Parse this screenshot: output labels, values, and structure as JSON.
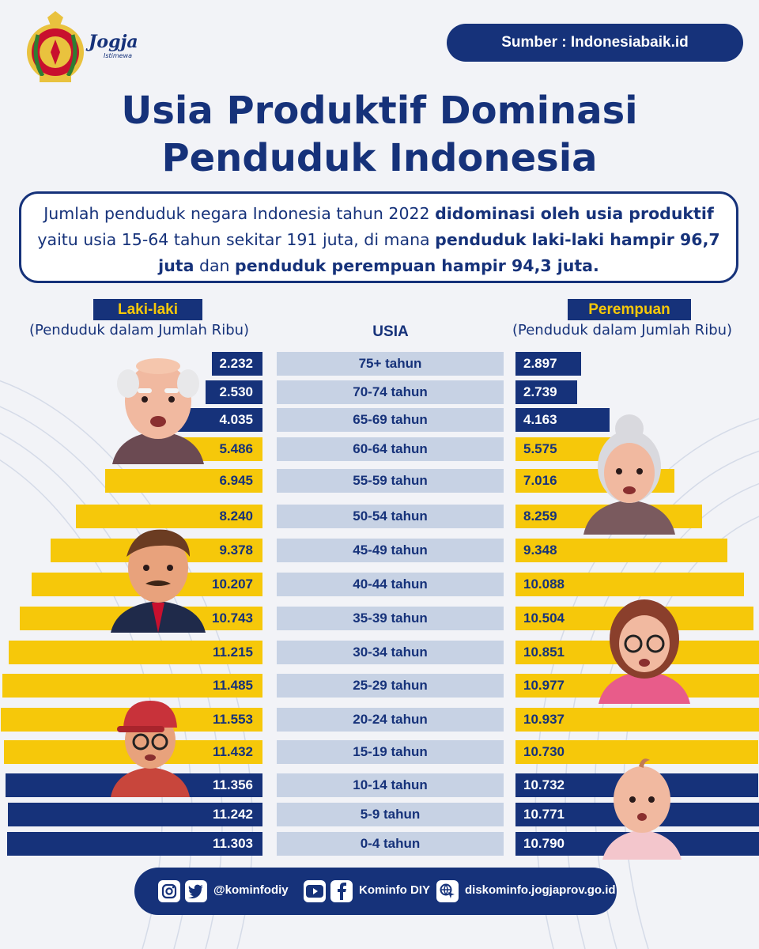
{
  "header": {
    "logo_text": "Jogja",
    "logo_sub": "Istimewa",
    "source": "Sumber : Indonesiabaik.id"
  },
  "title_line1": "Usia Produktif Dominasi",
  "title_line2": "Penduduk Indonesia",
  "summary": {
    "p1": "Jumlah penduduk negara Indonesia tahun 2022 ",
    "b1": "didominasi oleh usia produktif",
    "p2": " yaitu usia 15-64 tahun sekitar 191 juta, di mana ",
    "b2": "penduduk laki-laki hampir 96,7 juta",
    "p3": " dan ",
    "b3": "penduduk perempuan hampir 94,3 juta."
  },
  "labels": {
    "male": "Laki-laki",
    "male_sub": "(Penduduk dalam Jumlah Ribu)",
    "female": "Perempuan",
    "female_sub": "(Penduduk dalam Jumlah Ribu)",
    "age": "USIA"
  },
  "chart_data": {
    "type": "bar",
    "categories": [
      "75+ tahun",
      "70-74 tahun",
      "65-69 tahun",
      "60-64 tahun",
      "55-59 tahun",
      "50-54 tahun",
      "45-49 tahun",
      "40-44 tahun",
      "35-39 tahun",
      "30-34 tahun",
      "25-29 tahun",
      "20-24 tahun",
      "15-19 tahun",
      "10-14 tahun",
      "5-9 tahun",
      "0-4 tahun"
    ],
    "series": [
      {
        "name": "Laki-laki",
        "values": [
          2232,
          2530,
          4035,
          5486,
          6945,
          8240,
          9378,
          10207,
          10743,
          11215,
          11485,
          11553,
          11432,
          11356,
          11242,
          11303
        ],
        "labels": [
          "2.232",
          "2.530",
          "4.035",
          "5.486",
          "6.945",
          "8.240",
          "9.378",
          "10.207",
          "10.743",
          "11.215",
          "11.485",
          "11.553",
          "11.432",
          "11.356",
          "11.242",
          "11.303"
        ]
      },
      {
        "name": "Perempuan",
        "values": [
          2897,
          2739,
          4163,
          5575,
          7016,
          8259,
          9348,
          10088,
          10504,
          10851,
          10977,
          10937,
          10730,
          10732,
          10771,
          10790
        ],
        "labels": [
          "2.897",
          "2.739",
          "4.163",
          "5.575",
          "7.016",
          "8.259",
          "9.348",
          "10.088",
          "10.504",
          "10.851",
          "10.977",
          "10.937",
          "10.730",
          "10.732",
          "10.771",
          "10.790"
        ]
      }
    ],
    "highlight": [
      "blue",
      "blue",
      "blue",
      "yellow",
      "yellow",
      "yellow",
      "yellow",
      "yellow",
      "yellow",
      "yellow",
      "yellow",
      "yellow",
      "yellow",
      "blue",
      "blue",
      "blue"
    ],
    "colors": {
      "non_productive": "#16327a",
      "productive": "#f6c80a",
      "age_cell": "#c7d2e4"
    },
    "xlim": [
      0,
      11600
    ]
  },
  "footer": {
    "social": "@kominfodiy",
    "youtube_fb": "Kominfo DIY",
    "website": "diskominfo.jogjaprov.go.id",
    "icons": [
      "instagram-icon",
      "twitter-icon",
      "youtube-icon",
      "facebook-icon",
      "web-icon"
    ]
  }
}
